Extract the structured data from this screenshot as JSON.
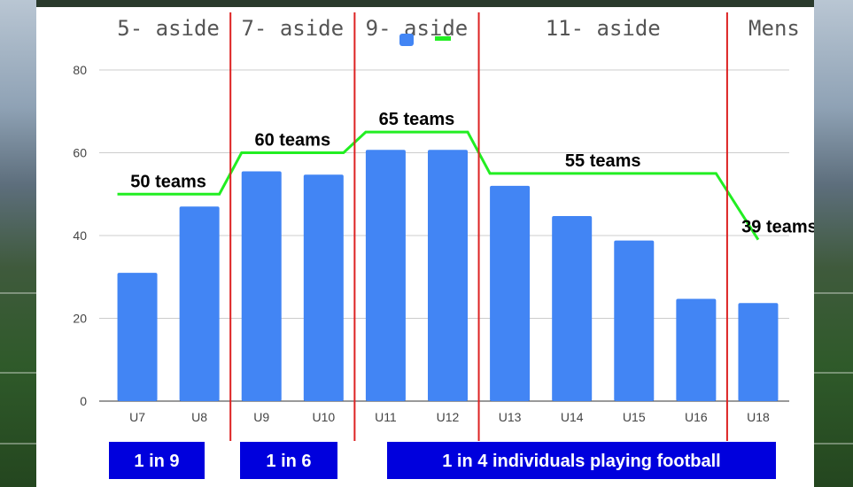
{
  "chart_data": {
    "type": "bar",
    "categories": [
      "U7",
      "U8",
      "U9",
      "U10",
      "U11",
      "U12",
      "U13",
      "U14",
      "U15",
      "U16",
      "U18"
    ],
    "series": [
      {
        "values": [
          31,
          47,
          55.5,
          54.7,
          60.7,
          60.7,
          52,
          44.7,
          38.8,
          24.7,
          23.7
        ],
        "color": "#4285f4"
      },
      {
        "type": "line",
        "values": [
          50,
          50,
          60,
          60,
          65,
          65,
          55,
          55,
          55,
          55,
          39
        ],
        "color": "#22ee22"
      }
    ],
    "ylim": [
      0,
      80
    ],
    "yticks": [
      0,
      20,
      40,
      60,
      80
    ],
    "grid": true,
    "legend": "top-center",
    "sections": [
      {
        "label": "5- aside",
        "from": 0,
        "to": 1
      },
      {
        "label": "7- aside",
        "from": 2,
        "to": 3
      },
      {
        "label": "9- aside",
        "from": 4,
        "to": 5
      },
      {
        "label": "11- aside",
        "from": 6,
        "to": 9
      },
      {
        "label": "Mens",
        "from": 10,
        "to": 10
      }
    ],
    "annotations": [
      {
        "text": "50 teams",
        "at": 0.5,
        "y": 50
      },
      {
        "text": "60 teams",
        "at": 2.5,
        "y": 60
      },
      {
        "text": "65 teams",
        "at": 4.5,
        "y": 65
      },
      {
        "text": "55 teams",
        "at": 7.5,
        "y": 55
      },
      {
        "text": "39 teams",
        "at": 10,
        "y": 39
      }
    ],
    "ratio_boxes": [
      {
        "text": "1 in 9",
        "from": 0,
        "to": 1
      },
      {
        "text": "1 in 6",
        "from": 2,
        "to": 3
      },
      {
        "text": "1 in 4 individuals playing football",
        "from": 4,
        "to": 10
      }
    ],
    "divider_color": "#dd2222",
    "box_color": "#0000dd"
  }
}
